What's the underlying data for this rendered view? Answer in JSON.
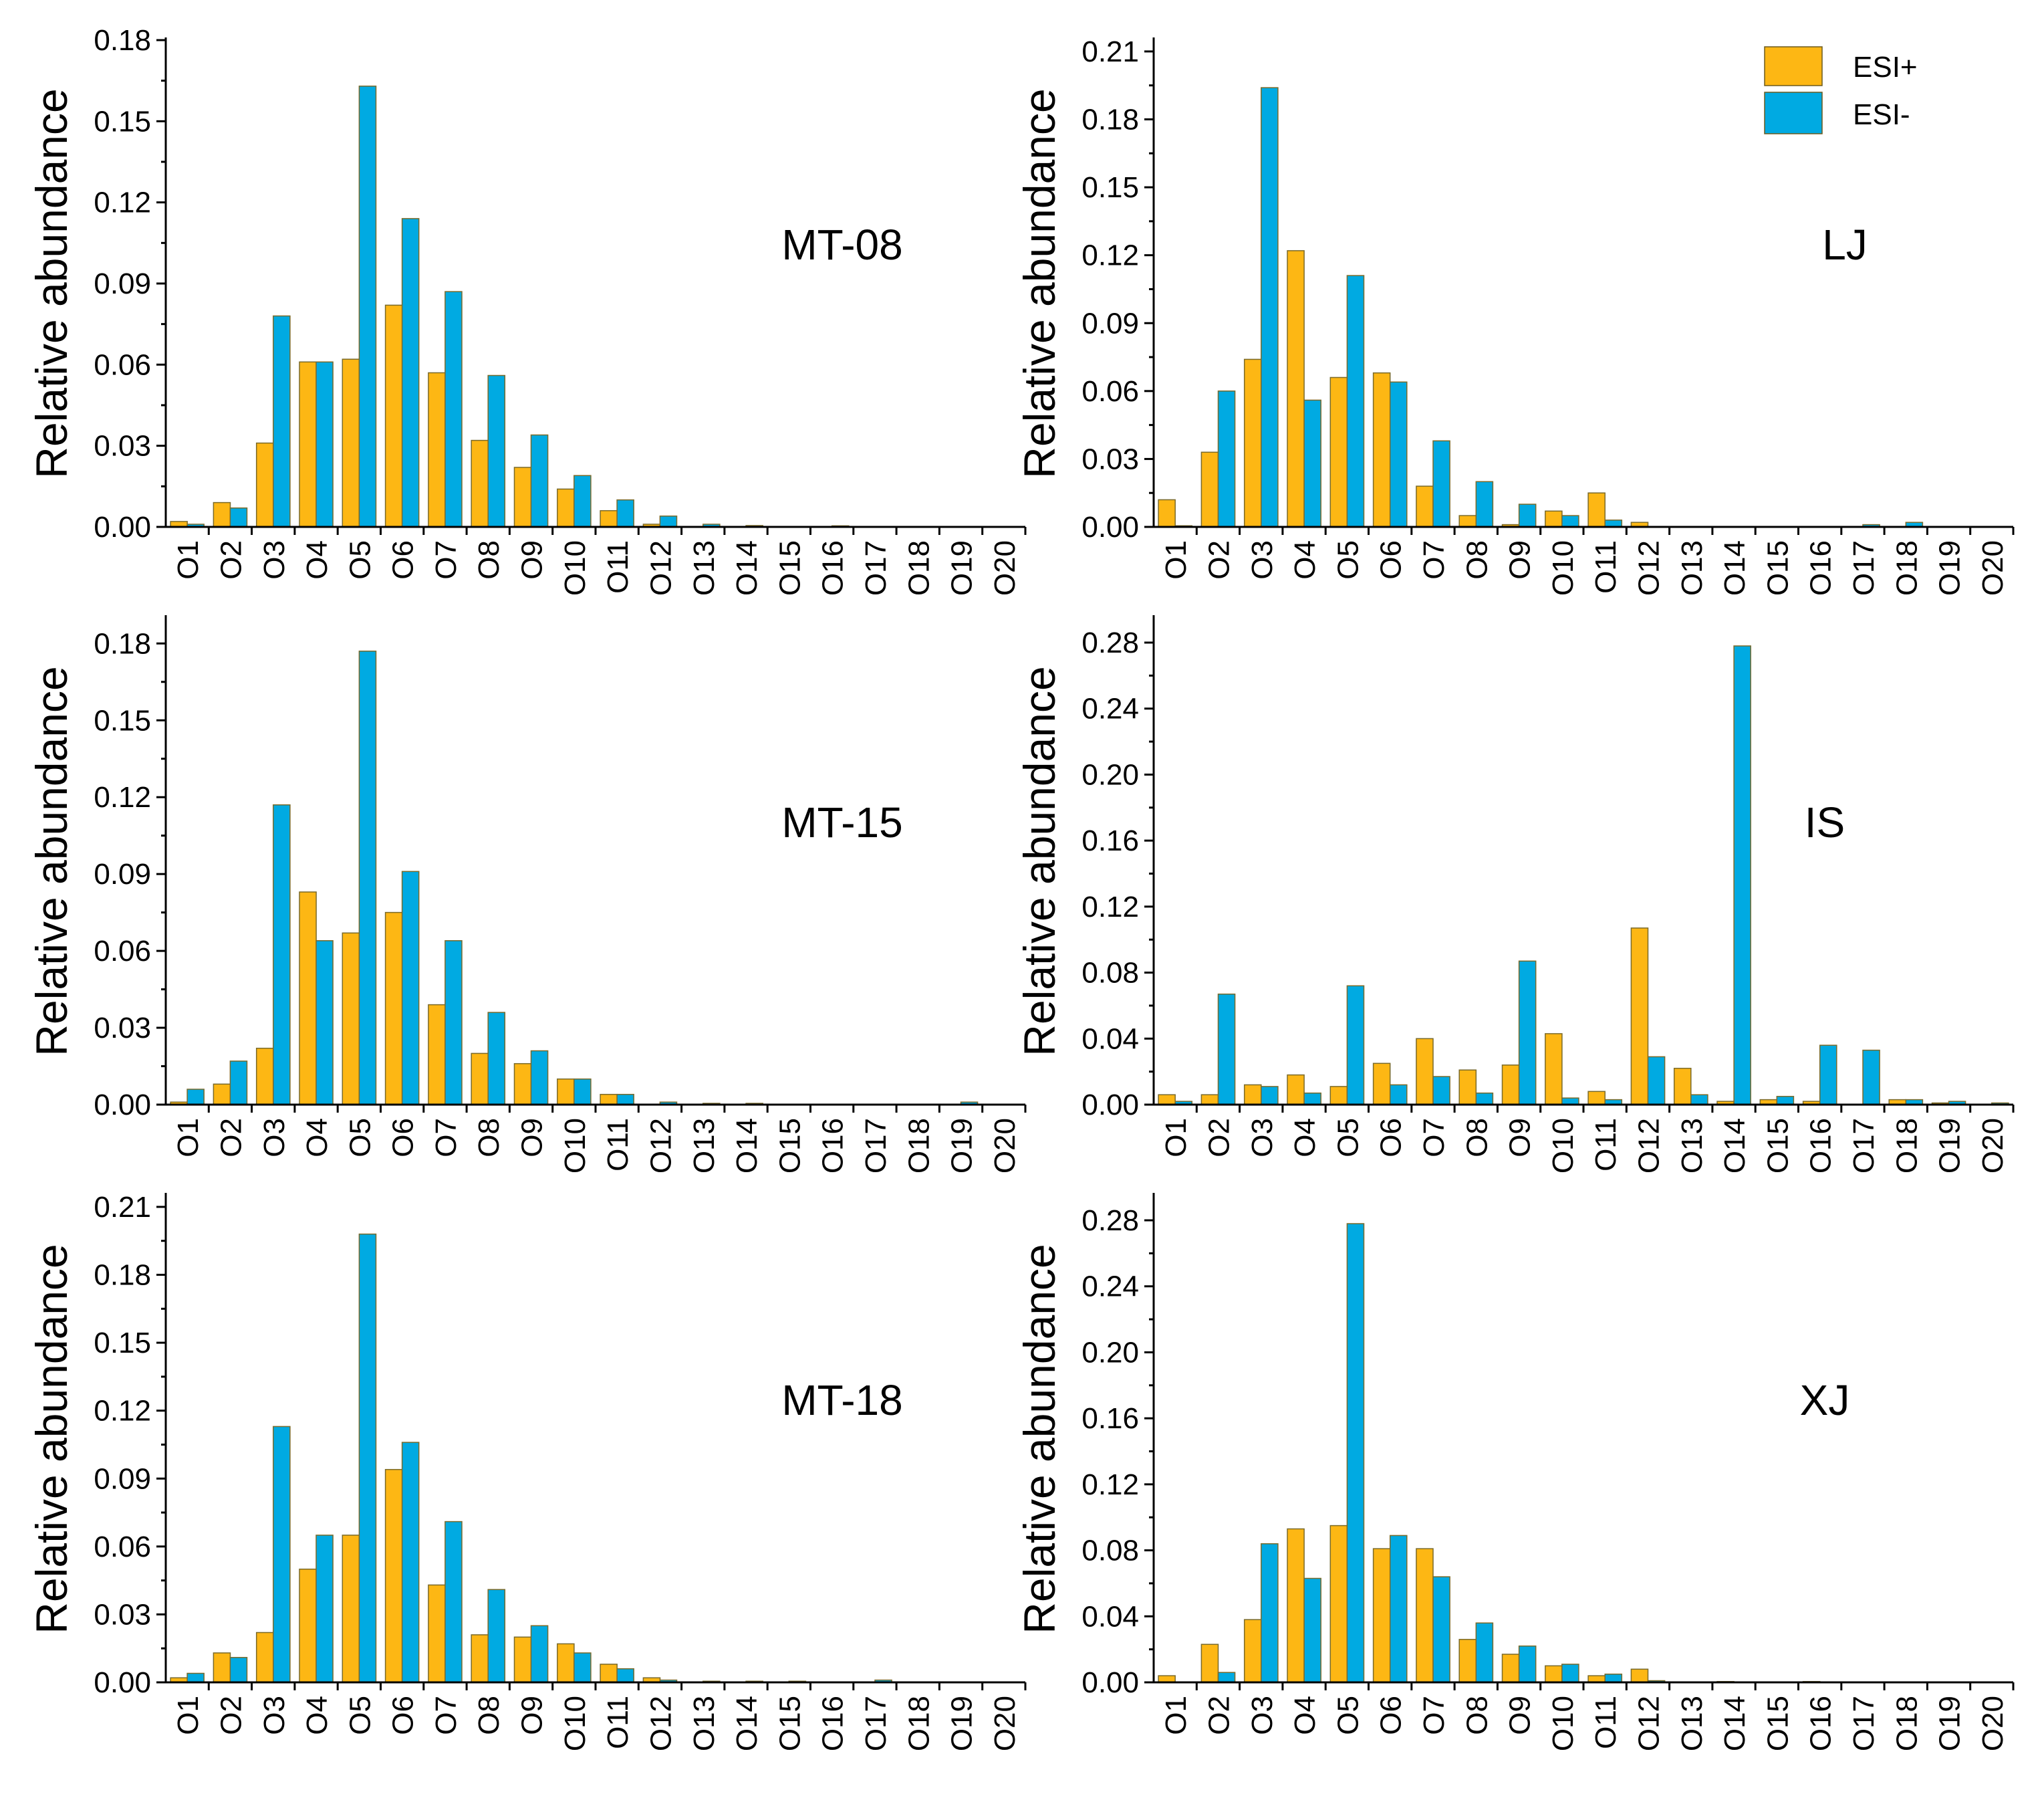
{
  "categories": [
    "O1",
    "O2",
    "O3",
    "O4",
    "O5",
    "O6",
    "O7",
    "O8",
    "O9",
    "O10",
    "O11",
    "O12",
    "O13",
    "O14",
    "O15",
    "O16",
    "O17",
    "O18",
    "O19",
    "O20"
  ],
  "colors": {
    "pos": "#FDB714",
    "neg": "#00AAE2",
    "bar_edge": "#6b5a1e",
    "axis": "#000000"
  },
  "legend": {
    "pos_label": "ESI+",
    "neg_label": "ESI-",
    "placement": "top-right of LJ panel"
  },
  "chart_data": [
    {
      "type": "bar",
      "title": "MT-08",
      "ylabel": "Relative abundance",
      "ylim": [
        0,
        0.18
      ],
      "yticks": [
        "0.00",
        "0.03",
        "0.06",
        "0.09",
        "0.12",
        "0.15",
        "0.18"
      ],
      "series": [
        {
          "name": "ESI+",
          "values": [
            0.002,
            0.009,
            0.031,
            0.061,
            0.062,
            0.082,
            0.057,
            0.032,
            0.022,
            0.014,
            0.006,
            0.001,
            0.0,
            0.0,
            0.0,
            0.0,
            0.0,
            0.0,
            0.0,
            0.0
          ]
        },
        {
          "name": "ESI-",
          "values": [
            0.001,
            0.007,
            0.078,
            0.061,
            0.163,
            0.114,
            0.087,
            0.056,
            0.034,
            0.019,
            0.01,
            0.004,
            0.001,
            0.0005,
            0.0,
            0.0004,
            0.0,
            0.0,
            0.0,
            0.0
          ]
        }
      ]
    },
    {
      "type": "bar",
      "title": "LJ",
      "ylabel": "Relative abundance",
      "ylim": [
        0,
        0.22
      ],
      "yticks": [
        "0.00",
        "0.03",
        "0.06",
        "0.09",
        "0.12",
        "0.15",
        "0.18",
        "0.21"
      ],
      "series": [
        {
          "name": "ESI+",
          "values": [
            0.012,
            0.033,
            0.074,
            0.122,
            0.066,
            0.068,
            0.018,
            0.005,
            0.001,
            0.007,
            0.015,
            0.002,
            0.0,
            0.0,
            0.0,
            0.0,
            0.0,
            0.0,
            0.0,
            0.0
          ]
        },
        {
          "name": "ESI-",
          "values": [
            0.0005,
            0.06,
            0.194,
            0.056,
            0.111,
            0.064,
            0.038,
            0.02,
            0.01,
            0.005,
            0.003,
            0.0,
            0.0,
            0.0,
            0.0,
            0.0,
            0.001,
            0.002,
            0.0,
            0.0
          ]
        }
      ]
    },
    {
      "type": "bar",
      "title": "MT-15",
      "ylabel": "Relative abundance",
      "ylim": [
        0,
        0.2
      ],
      "yticks": [
        "0.00",
        "0.03",
        "0.06",
        "0.09",
        "0.12",
        "0.15",
        "0.18"
      ],
      "series": [
        {
          "name": "ESI+",
          "values": [
            0.001,
            0.008,
            0.022,
            0.083,
            0.067,
            0.075,
            0.039,
            0.02,
            0.016,
            0.01,
            0.004,
            0.0,
            0.0,
            0.0,
            0.0,
            0.0,
            0.0,
            0.0,
            0.0,
            0.0
          ]
        },
        {
          "name": "ESI-",
          "values": [
            0.006,
            0.017,
            0.117,
            0.064,
            0.177,
            0.091,
            0.064,
            0.036,
            0.021,
            0.01,
            0.004,
            0.001,
            0.0005,
            0.0005,
            0.0,
            0.0,
            0.0,
            0.0,
            0.001,
            0.0
          ]
        }
      ]
    },
    {
      "type": "bar",
      "title": "IS",
      "ylabel": "Relative abundance",
      "ylim": [
        0,
        0.3
      ],
      "yticks": [
        "0.00",
        "0.04",
        "0.08",
        "0.12",
        "0.16",
        "0.20",
        "0.24",
        "0.28"
      ],
      "series": [
        {
          "name": "ESI+",
          "values": [
            0.006,
            0.006,
            0.012,
            0.018,
            0.011,
            0.025,
            0.04,
            0.021,
            0.024,
            0.043,
            0.008,
            0.107,
            0.022,
            0.002,
            0.003,
            0.002,
            0.0,
            0.003,
            0.001,
            0.0
          ]
        },
        {
          "name": "ESI-",
          "values": [
            0.002,
            0.067,
            0.011,
            0.007,
            0.072,
            0.012,
            0.017,
            0.007,
            0.087,
            0.004,
            0.003,
            0.029,
            0.006,
            0.278,
            0.005,
            0.036,
            0.033,
            0.003,
            0.002,
            0.001
          ]
        }
      ]
    },
    {
      "type": "bar",
      "title": "MT-18",
      "ylabel": "Relative abundance",
      "ylim": [
        0,
        0.22
      ],
      "yticks": [
        "0.00",
        "0.03",
        "0.06",
        "0.09",
        "0.12",
        "0.15",
        "0.18",
        "0.21"
      ],
      "series": [
        {
          "name": "ESI+",
          "values": [
            0.002,
            0.013,
            0.022,
            0.05,
            0.065,
            0.094,
            0.043,
            0.021,
            0.02,
            0.017,
            0.008,
            0.002,
            0.0,
            0.0,
            0.0,
            0.0,
            0.0,
            0.0,
            0.0,
            0.0
          ]
        },
        {
          "name": "ESI-",
          "values": [
            0.004,
            0.011,
            0.113,
            0.065,
            0.198,
            0.106,
            0.071,
            0.041,
            0.025,
            0.013,
            0.006,
            0.001,
            0.0005,
            0.0005,
            0.0005,
            0.0,
            0.001,
            0.0,
            0.0,
            0.0
          ]
        }
      ]
    },
    {
      "type": "bar",
      "title": "XJ",
      "ylabel": "Relative abundance",
      "ylim": [
        0,
        0.3
      ],
      "yticks": [
        "0.00",
        "0.04",
        "0.08",
        "0.12",
        "0.16",
        "0.20",
        "0.24",
        "0.28"
      ],
      "series": [
        {
          "name": "ESI+",
          "values": [
            0.004,
            0.023,
            0.038,
            0.093,
            0.095,
            0.081,
            0.081,
            0.026,
            0.017,
            0.01,
            0.004,
            0.008,
            0.0,
            0.0005,
            0.0,
            0.0005,
            0.0,
            0.0,
            0.0,
            0.0
          ]
        },
        {
          "name": "ESI-",
          "values": [
            0.0,
            0.006,
            0.084,
            0.063,
            0.278,
            0.089,
            0.064,
            0.036,
            0.022,
            0.011,
            0.005,
            0.001,
            0.0,
            0.0,
            0.0,
            0.0,
            0.0,
            0.0,
            0.0,
            0.0
          ]
        }
      ]
    }
  ]
}
